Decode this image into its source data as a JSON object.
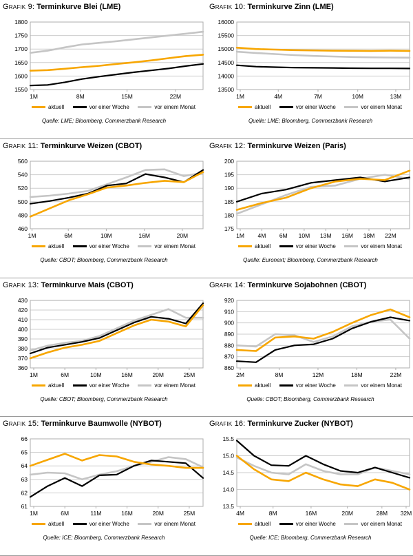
{
  "charts": [
    {
      "label": "Grafik 9:",
      "title": "Terminkurve Blei (LME)",
      "source": "Quelle: LME; Bloomberg, Commerzbank Research",
      "chart_data": {
        "type": "line",
        "ylim": [
          1550,
          1800
        ],
        "yticks": [
          1550,
          1600,
          1650,
          1700,
          1750,
          1800
        ],
        "ytick_labels": [
          "1550",
          "1600",
          "1650",
          "1700",
          "1750",
          "1800"
        ],
        "xticks": [
          {
            "f": 0.02,
            "label": "1M"
          },
          {
            "f": 0.29,
            "label": "8M"
          },
          {
            "f": 0.56,
            "label": "15M"
          },
          {
            "f": 0.84,
            "label": "22M"
          }
        ],
        "series": [
          {
            "name": "aktuell",
            "color": "#F7A600",
            "values": [
              1620,
              1622,
              1627,
              1633,
              1638,
              1645,
              1651,
              1658,
              1666,
              1674,
              1679
            ]
          },
          {
            "name": "vor einer Woche",
            "color": "#000000",
            "values": [
              1565,
              1567,
              1577,
              1589,
              1598,
              1606,
              1614,
              1621,
              1628,
              1637,
              1645
            ]
          },
          {
            "name": "vor einem Monat",
            "color": "#C5C5C5",
            "values": [
              1686,
              1694,
              1706,
              1717,
              1723,
              1729,
              1736,
              1743,
              1750,
              1757,
              1764
            ]
          }
        ]
      }
    },
    {
      "label": "Grafik 10:",
      "title": "Terminkurve Zinn (LME)",
      "source": "Quelle: LME; Bloomberg, Commerzbank Research",
      "chart_data": {
        "type": "line",
        "ylim": [
          13500,
          16000
        ],
        "yticks": [
          13500,
          14000,
          14500,
          15000,
          15500,
          16000
        ],
        "ytick_labels": [
          "13500",
          "14000",
          "14500",
          "15000",
          "15500",
          "16000"
        ],
        "xticks": [
          {
            "f": 0.02,
            "label": "1M"
          },
          {
            "f": 0.24,
            "label": "4M"
          },
          {
            "f": 0.47,
            "label": "7M"
          },
          {
            "f": 0.7,
            "label": "10M"
          },
          {
            "f": 0.92,
            "label": "13M"
          }
        ],
        "series": [
          {
            "name": "aktuell",
            "color": "#F7A600",
            "values": [
              15050,
              15000,
              14980,
              14960,
              14950,
              14940,
              14935,
              14930,
              14940,
              14930
            ]
          },
          {
            "name": "vor einer Woche",
            "color": "#000000",
            "values": [
              14400,
              14350,
              14330,
              14310,
              14305,
              14300,
              14290,
              14285,
              14285,
              14280
            ]
          },
          {
            "name": "vor einem Monat",
            "color": "#C5C5C5",
            "values": [
              14900,
              14855,
              14815,
              14775,
              14745,
              14725,
              14705,
              14695,
              14685,
              14680
            ]
          }
        ]
      }
    },
    {
      "label": "Grafik 11:",
      "title": "Terminkurve Weizen (CBOT)",
      "source": "Quelle: CBOT; Bloomberg, Commerzbank Research",
      "chart_data": {
        "type": "line",
        "ylim": [
          460,
          560
        ],
        "yticks": [
          460,
          480,
          500,
          520,
          540,
          560
        ],
        "ytick_labels": [
          "460",
          "480",
          "500",
          "520",
          "540",
          "560"
        ],
        "xticks": [
          {
            "f": 0.01,
            "label": "1M"
          },
          {
            "f": 0.22,
            "label": "6M"
          },
          {
            "f": 0.44,
            "label": "10M"
          },
          {
            "f": 0.66,
            "label": "16M"
          },
          {
            "f": 0.88,
            "label": "20M"
          }
        ],
        "series": [
          {
            "name": "aktuell",
            "color": "#F7A600",
            "values": [
              478,
              490,
              502,
              511,
              521,
              524,
              528,
              531,
              529,
              544
            ]
          },
          {
            "name": "vor einer Woche",
            "color": "#000000",
            "values": [
              497,
              501,
              506,
              512,
              524,
              527,
              541,
              536,
              529,
              547
            ]
          },
          {
            "name": "vor einem Monat",
            "color": "#C5C5C5",
            "values": [
              507,
              509,
              512,
              516,
              526,
              536,
              547,
              548,
              538,
              543
            ]
          }
        ]
      }
    },
    {
      "label": "Grafik 12:",
      "title": "Terminkurve Weizen (Paris)",
      "source": "Quelle: Euronext; Bloomberg, Commerzbank Research",
      "chart_data": {
        "type": "line",
        "ylim": [
          175,
          200
        ],
        "yticks": [
          175,
          180,
          185,
          190,
          195,
          200
        ],
        "ytick_labels": [
          "175",
          "180",
          "185",
          "190",
          "195",
          "200"
        ],
        "xticks": [
          {
            "f": 0.02,
            "label": "1M"
          },
          {
            "f": 0.145,
            "label": "4M"
          },
          {
            "f": 0.27,
            "label": "6M"
          },
          {
            "f": 0.39,
            "label": "10M"
          },
          {
            "f": 0.515,
            "label": "13M"
          },
          {
            "f": 0.64,
            "label": "16M"
          },
          {
            "f": 0.765,
            "label": "18M"
          },
          {
            "f": 0.89,
            "label": "22M"
          }
        ],
        "series": [
          {
            "name": "aktuell",
            "color": "#F7A600",
            "values": [
              182,
              184.5,
              186.5,
              190,
              192.5,
              193.5,
              193,
              196.5
            ]
          },
          {
            "name": "vor einer Woche",
            "color": "#000000",
            "values": [
              185,
              188,
              189.5,
              192,
              193,
              194,
              192.5,
              194
            ]
          },
          {
            "name": "vor einem Monat",
            "color": "#C5C5C5",
            "values": [
              180.5,
              184,
              187.5,
              190.5,
              191,
              193.5,
              195,
              193.5
            ]
          }
        ]
      }
    },
    {
      "label": "Grafik 13:",
      "title": "Terminkurve Mais (CBOT)",
      "source": "Quelle: CBOT; Bloomberg, Commerzbank Research",
      "chart_data": {
        "type": "line",
        "ylim": [
          360,
          430
        ],
        "yticks": [
          360,
          370,
          380,
          390,
          400,
          410,
          420,
          430
        ],
        "ytick_labels": [
          "360",
          "370",
          "380",
          "390",
          "400",
          "410",
          "420",
          "430"
        ],
        "xticks": [
          {
            "f": 0.02,
            "label": "1M"
          },
          {
            "f": 0.2,
            "label": "6M"
          },
          {
            "f": 0.38,
            "label": "10M"
          },
          {
            "f": 0.56,
            "label": "16M"
          },
          {
            "f": 0.74,
            "label": "20M"
          },
          {
            "f": 0.92,
            "label": "25M"
          }
        ],
        "series": [
          {
            "name": "aktuell",
            "color": "#F7A600",
            "values": [
              370,
              376,
              381,
              384,
              388,
              396,
              404,
              410,
              408,
              403,
              425
            ]
          },
          {
            "name": "vor einer Woche",
            "color": "#000000",
            "values": [
              375,
              381,
              384,
              387,
              391,
              399,
              407,
              413,
              411,
              406,
              427
            ]
          },
          {
            "name": "vor einem Monat",
            "color": "#C5C5C5",
            "values": [
              378,
              383,
              386,
              388,
              393,
              401,
              409,
              415,
              421,
              412,
              412
            ]
          }
        ]
      }
    },
    {
      "label": "Grafik 14:",
      "title": "Terminkurve Sojabohnen (CBOT)",
      "source": "Quelle: CBOT; Bloomberg, Commerzbank Research",
      "chart_data": {
        "type": "line",
        "ylim": [
          860,
          920
        ],
        "yticks": [
          860,
          870,
          880,
          890,
          900,
          910,
          920
        ],
        "ytick_labels": [
          "860",
          "870",
          "880",
          "890",
          "900",
          "910",
          "920"
        ],
        "xticks": [
          {
            "f": 0.02,
            "label": "2M"
          },
          {
            "f": 0.245,
            "label": "8M"
          },
          {
            "f": 0.47,
            "label": "12M"
          },
          {
            "f": 0.695,
            "label": "18M"
          },
          {
            "f": 0.92,
            "label": "22M"
          }
        ],
        "series": [
          {
            "name": "aktuell",
            "color": "#F7A600",
            "values": [
              876,
              875,
              887,
              888,
              886,
              892,
              900,
              907,
              912,
              905
            ]
          },
          {
            "name": "vor einer Woche",
            "color": "#000000",
            "values": [
              866,
              865,
              876,
              880,
              881,
              886,
              895,
              901,
              905,
              902
            ]
          },
          {
            "name": "vor einem Monat",
            "color": "#C5C5C5",
            "values": [
              880,
              879,
              890,
              889,
              883,
              888,
              897,
              901,
              903,
              886
            ]
          }
        ]
      }
    },
    {
      "label": "Grafik 15:",
      "title": "Terminkurve Baumwolle (NYBOT)",
      "source": "Quelle: ICE; Bloomberg, Commerzbank Research",
      "chart_data": {
        "type": "line",
        "ylim": [
          61,
          66
        ],
        "yticks": [
          61,
          62,
          63,
          64,
          65,
          66
        ],
        "ytick_labels": [
          "61",
          "62",
          "63",
          "64",
          "65",
          "66"
        ],
        "xticks": [
          {
            "f": 0.02,
            "label": "1M"
          },
          {
            "f": 0.2,
            "label": "6M"
          },
          {
            "f": 0.38,
            "label": "11M"
          },
          {
            "f": 0.56,
            "label": "16M"
          },
          {
            "f": 0.74,
            "label": "20M"
          },
          {
            "f": 0.92,
            "label": "25M"
          }
        ],
        "series": [
          {
            "name": "aktuell",
            "color": "#F7A600",
            "values": [
              64.0,
              64.45,
              64.9,
              64.4,
              64.8,
              64.7,
              64.3,
              64.1,
              64.0,
              63.85,
              63.85
            ]
          },
          {
            "name": "vor einer Woche",
            "color": "#000000",
            "values": [
              61.7,
              62.5,
              63.1,
              62.5,
              63.3,
              63.35,
              64.0,
              64.4,
              64.3,
              64.2,
              63.1
            ]
          },
          {
            "name": "vor einem Monat",
            "color": "#C5C5C5",
            "values": [
              63.35,
              63.5,
              63.45,
              63.0,
              63.35,
              63.6,
              64.0,
              64.3,
              64.65,
              64.5,
              63.9
            ]
          }
        ]
      }
    },
    {
      "label": "Grafik 16:",
      "title": "Terminkurve Zucker (NYBOT)",
      "source": "Quelle: ICE; Bloomberg, Commerzbank Research",
      "chart_data": {
        "type": "line",
        "ylim": [
          13.5,
          15.5
        ],
        "yticks": [
          13.5,
          14.0,
          14.5,
          15.0,
          15.5
        ],
        "ytick_labels": [
          "13.5",
          "14.0",
          "14.5",
          "15.0",
          "15.5"
        ],
        "xticks": [
          {
            "f": 0.02,
            "label": "4M"
          },
          {
            "f": 0.21,
            "label": "8M"
          },
          {
            "f": 0.43,
            "label": "16M"
          },
          {
            "f": 0.64,
            "label": "20M"
          },
          {
            "f": 0.84,
            "label": "28M"
          },
          {
            "f": 0.98,
            "label": "32M"
          }
        ],
        "series": [
          {
            "name": "aktuell",
            "color": "#F7A600",
            "values": [
              15.0,
              14.6,
              14.3,
              14.25,
              14.5,
              14.3,
              14.15,
              14.1,
              14.3,
              14.2,
              14.0
            ]
          },
          {
            "name": "vor einer Woche",
            "color": "#000000",
            "values": [
              15.45,
              15.0,
              14.72,
              14.7,
              15.0,
              14.75,
              14.55,
              14.5,
              14.65,
              14.5,
              14.35
            ]
          },
          {
            "name": "vor einem Monat",
            "color": "#C5C5C5",
            "values": [
              14.95,
              14.7,
              14.5,
              14.45,
              14.75,
              14.55,
              14.45,
              14.45,
              14.65,
              14.55,
              14.45
            ]
          }
        ]
      }
    }
  ]
}
